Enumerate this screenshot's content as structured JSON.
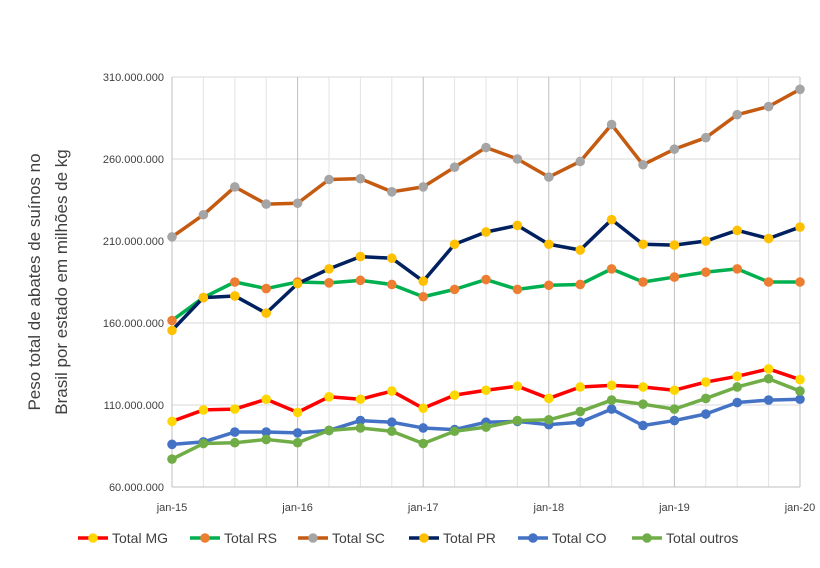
{
  "chart_data": {
    "type": "line",
    "title": "",
    "xlabel": "",
    "ylabel": "Peso total de abates de suínos no Brasil por estado em milhões de kg",
    "ylabel_lines": [
      "Peso total de abates de suínos no",
      "Brasil por estado em milhões de kg"
    ],
    "ylim": [
      60000000,
      310000000
    ],
    "yticks": [
      60000000,
      110000000,
      160000000,
      210000000,
      260000000,
      310000000
    ],
    "ytick_labels": [
      "60.000.000",
      "110.000.000",
      "160.000.000",
      "210.000.000",
      "260.000.000",
      "310.000.000"
    ],
    "xlim": [
      0,
      20
    ],
    "xticks": [
      0,
      4,
      8,
      12,
      16,
      20
    ],
    "xtick_labels": [
      "jan-15",
      "jan-16",
      "jan-17",
      "jan-18",
      "jan-19",
      "jan-20"
    ],
    "grid": true,
    "legend_position": "bottom",
    "x": [
      0,
      1,
      2,
      3,
      4,
      5,
      6,
      7,
      8,
      9,
      10,
      11,
      12,
      13,
      14,
      15,
      16,
      17,
      18,
      19,
      20
    ],
    "series": [
      {
        "name": "Total MG",
        "line_color": "#ff0000",
        "marker_color": "#ffd700",
        "values": [
          100000000,
          107000000,
          107500000,
          113500000,
          105500000,
          115000000,
          113500000,
          118500000,
          108000000,
          116000000,
          119000000,
          121500000,
          114000000,
          121000000,
          122000000,
          121000000,
          119000000,
          124000000,
          127500000,
          132000000,
          125500000
        ]
      },
      {
        "name": "Total RS",
        "line_color": "#00b050",
        "marker_color": "#ed7d31",
        "values": [
          161500000,
          175500000,
          185000000,
          181000000,
          185000000,
          184500000,
          186000000,
          183500000,
          176000000,
          180500000,
          186500000,
          180500000,
          183000000,
          183500000,
          193000000,
          185000000,
          188000000,
          191000000,
          193000000,
          185000000,
          185000000
        ]
      },
      {
        "name": "Total SC",
        "line_color": "#c55a11",
        "marker_color": "#a5a5a5",
        "values": [
          212500000,
          226000000,
          243000000,
          232500000,
          233000000,
          247500000,
          248000000,
          240000000,
          243000000,
          255000000,
          267000000,
          260000000,
          249000000,
          258500000,
          281000000,
          256500000,
          266000000,
          273000000,
          287000000,
          292000000,
          302500000
        ]
      },
      {
        "name": "Total PR",
        "line_color": "#002060",
        "marker_color": "#ffc000",
        "values": [
          155500000,
          175500000,
          176500000,
          166000000,
          184000000,
          193000000,
          200500000,
          199500000,
          185500000,
          208000000,
          215500000,
          219500000,
          208000000,
          204500000,
          223000000,
          208000000,
          207500000,
          210000000,
          216500000,
          211500000,
          218500000
        ]
      },
      {
        "name": "Total CO",
        "line_color": "#4472c4",
        "marker_color": "#4472c4",
        "values": [
          86000000,
          87500000,
          93500000,
          93500000,
          93000000,
          94500000,
          100500000,
          99500000,
          96000000,
          95000000,
          99500000,
          100000000,
          98000000,
          99500000,
          107500000,
          97500000,
          100500000,
          104500000,
          111500000,
          113000000,
          113500000
        ]
      },
      {
        "name": "Total outros",
        "line_color": "#70ad47",
        "marker_color": "#70ad47",
        "values": [
          77000000,
          86500000,
          87000000,
          89000000,
          87000000,
          94500000,
          96000000,
          94000000,
          86500000,
          94000000,
          96500000,
          100500000,
          101000000,
          106000000,
          113000000,
          110500000,
          107500000,
          114000000,
          121000000,
          126000000,
          118500000
        ]
      }
    ]
  }
}
